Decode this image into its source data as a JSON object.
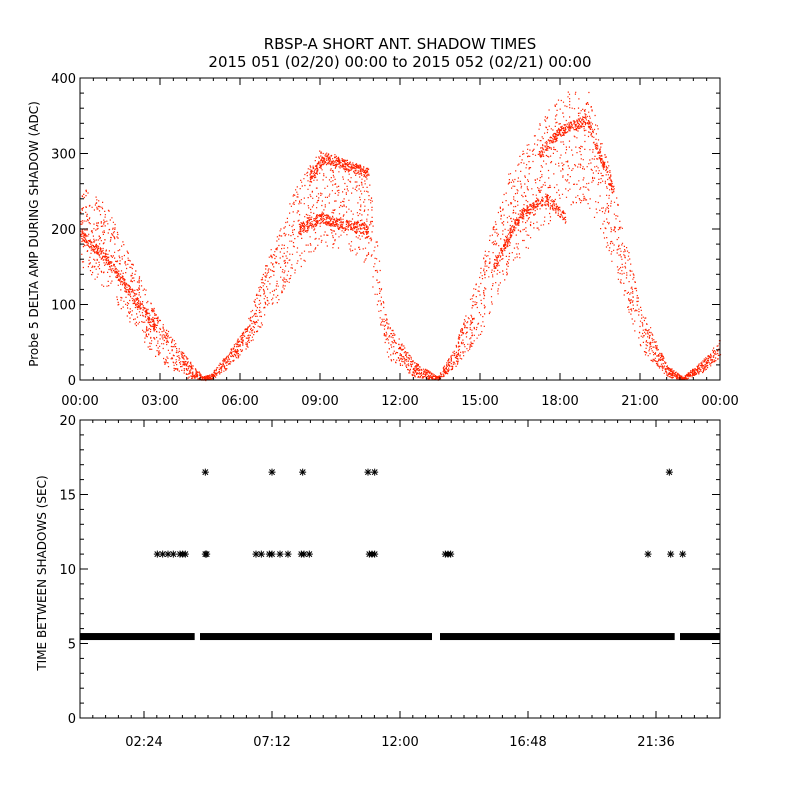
{
  "title_line1": "RBSP-A SHORT ANT. SHADOW TIMES",
  "title_line2": "2015 051 (02/20) 00:00 to 2015 052 (02/21) 00:00",
  "chart_data": [
    {
      "type": "scatter",
      "name": "delta-amp",
      "ylabel": "Probe 5 DELTA AMP DURING SHADOW (ADC)",
      "xlim": [
        0,
        24
      ],
      "ylim": [
        0,
        400
      ],
      "xticks": [
        0,
        3,
        6,
        9,
        12,
        15,
        18,
        21,
        24
      ],
      "xtick_labels": [
        "00:00",
        "03:00",
        "06:00",
        "09:00",
        "12:00",
        "15:00",
        "18:00",
        "21:00",
        "00:00"
      ],
      "yticks": [
        0,
        100,
        200,
        300,
        400
      ],
      "ytick_labels": [
        "0",
        "100",
        "200",
        "300",
        "400"
      ],
      "color": "#ff2200",
      "envelope": [
        {
          "x": 0.0,
          "lo": 150,
          "hi": 265
        },
        {
          "x": 1.0,
          "lo": 120,
          "hi": 230
        },
        {
          "x": 2.0,
          "lo": 70,
          "hi": 155
        },
        {
          "x": 3.0,
          "lo": 22,
          "hi": 80
        },
        {
          "x": 4.0,
          "lo": 3,
          "hi": 30
        },
        {
          "x": 4.6,
          "lo": 0,
          "hi": 5
        },
        {
          "x": 4.9,
          "lo": 0,
          "hi": 8
        },
        {
          "x": 5.5,
          "lo": 15,
          "hi": 35
        },
        {
          "x": 6.2,
          "lo": 40,
          "hi": 70
        },
        {
          "x": 7.0,
          "lo": 80,
          "hi": 160
        },
        {
          "x": 8.0,
          "lo": 140,
          "hi": 250
        },
        {
          "x": 9.0,
          "lo": 175,
          "hi": 310
        },
        {
          "x": 10.0,
          "lo": 175,
          "hi": 290
        },
        {
          "x": 10.8,
          "lo": 145,
          "hi": 280
        },
        {
          "x": 11.5,
          "lo": 30,
          "hi": 80
        },
        {
          "x": 12.5,
          "lo": 5,
          "hi": 25
        },
        {
          "x": 13.4,
          "lo": 0,
          "hi": 5
        },
        {
          "x": 14.0,
          "lo": 15,
          "hi": 40
        },
        {
          "x": 15.0,
          "lo": 60,
          "hi": 150
        },
        {
          "x": 16.0,
          "lo": 140,
          "hi": 270
        },
        {
          "x": 17.0,
          "lo": 180,
          "hi": 330
        },
        {
          "x": 18.0,
          "lo": 230,
          "hi": 380
        },
        {
          "x": 19.0,
          "lo": 230,
          "hi": 390
        },
        {
          "x": 20.0,
          "lo": 150,
          "hi": 260
        },
        {
          "x": 21.0,
          "lo": 40,
          "hi": 100
        },
        {
          "x": 22.0,
          "lo": 5,
          "hi": 20
        },
        {
          "x": 22.6,
          "lo": 0,
          "hi": 5
        },
        {
          "x": 23.3,
          "lo": 10,
          "hi": 25
        },
        {
          "x": 24.0,
          "lo": 30,
          "hi": 55
        }
      ],
      "branches": [
        {
          "x": [
            0.0,
            1.0,
            2.0,
            2.8
          ],
          "y": [
            195,
            160,
            110,
            70
          ]
        },
        {
          "x": [
            8.2,
            9.0,
            10.0,
            10.8
          ],
          "y": [
            200,
            215,
            205,
            200
          ]
        },
        {
          "x": [
            8.6,
            9.2,
            10.0,
            10.8
          ],
          "y": [
            270,
            295,
            285,
            275
          ]
        },
        {
          "x": [
            15.5,
            16.5,
            17.5,
            18.2
          ],
          "y": [
            150,
            220,
            240,
            215
          ]
        },
        {
          "x": [
            17.2,
            18.0,
            19.0,
            20.0
          ],
          "y": [
            300,
            330,
            345,
            250
          ]
        }
      ]
    },
    {
      "type": "scatter",
      "name": "time-between-shadows",
      "ylabel": "TIME BETWEEN SHADOWS (SEC)",
      "xlim": [
        0,
        24
      ],
      "ylim": [
        0,
        20
      ],
      "xticks": [
        2.4,
        7.2,
        12,
        16.8,
        21.6
      ],
      "xtick_labels": [
        "02:24",
        "07:12",
        "12:00",
        "16:48",
        "21:36"
      ],
      "yticks": [
        0,
        5,
        10,
        15,
        20
      ],
      "ytick_labels": [
        "0",
        "5",
        "10",
        "15",
        "20"
      ],
      "baseline_value": 5.5,
      "baseline_segments": [
        [
          0.0,
          4.3
        ],
        [
          4.5,
          13.2
        ],
        [
          13.5,
          22.3
        ],
        [
          22.5,
          24.0
        ]
      ],
      "points": [
        {
          "x": 2.9,
          "y": 11
        },
        {
          "x": 3.1,
          "y": 11
        },
        {
          "x": 3.3,
          "y": 11
        },
        {
          "x": 3.5,
          "y": 11
        },
        {
          "x": 3.75,
          "y": 11
        },
        {
          "x": 3.85,
          "y": 11
        },
        {
          "x": 3.95,
          "y": 11
        },
        {
          "x": 4.7,
          "y": 11
        },
        {
          "x": 4.75,
          "y": 11
        },
        {
          "x": 4.7,
          "y": 16.5
        },
        {
          "x": 6.6,
          "y": 11
        },
        {
          "x": 6.8,
          "y": 11
        },
        {
          "x": 7.1,
          "y": 11
        },
        {
          "x": 7.2,
          "y": 11
        },
        {
          "x": 7.5,
          "y": 11
        },
        {
          "x": 7.8,
          "y": 11
        },
        {
          "x": 8.3,
          "y": 11
        },
        {
          "x": 8.4,
          "y": 11
        },
        {
          "x": 8.6,
          "y": 11
        },
        {
          "x": 7.2,
          "y": 16.5
        },
        {
          "x": 8.35,
          "y": 16.5
        },
        {
          "x": 10.8,
          "y": 16.5
        },
        {
          "x": 11.05,
          "y": 16.5
        },
        {
          "x": 10.85,
          "y": 11
        },
        {
          "x": 10.95,
          "y": 11
        },
        {
          "x": 11.05,
          "y": 11
        },
        {
          "x": 13.7,
          "y": 11
        },
        {
          "x": 13.8,
          "y": 11
        },
        {
          "x": 13.9,
          "y": 11
        },
        {
          "x": 21.3,
          "y": 11
        },
        {
          "x": 22.1,
          "y": 16.5
        },
        {
          "x": 22.15,
          "y": 11
        },
        {
          "x": 22.6,
          "y": 11
        }
      ]
    }
  ]
}
